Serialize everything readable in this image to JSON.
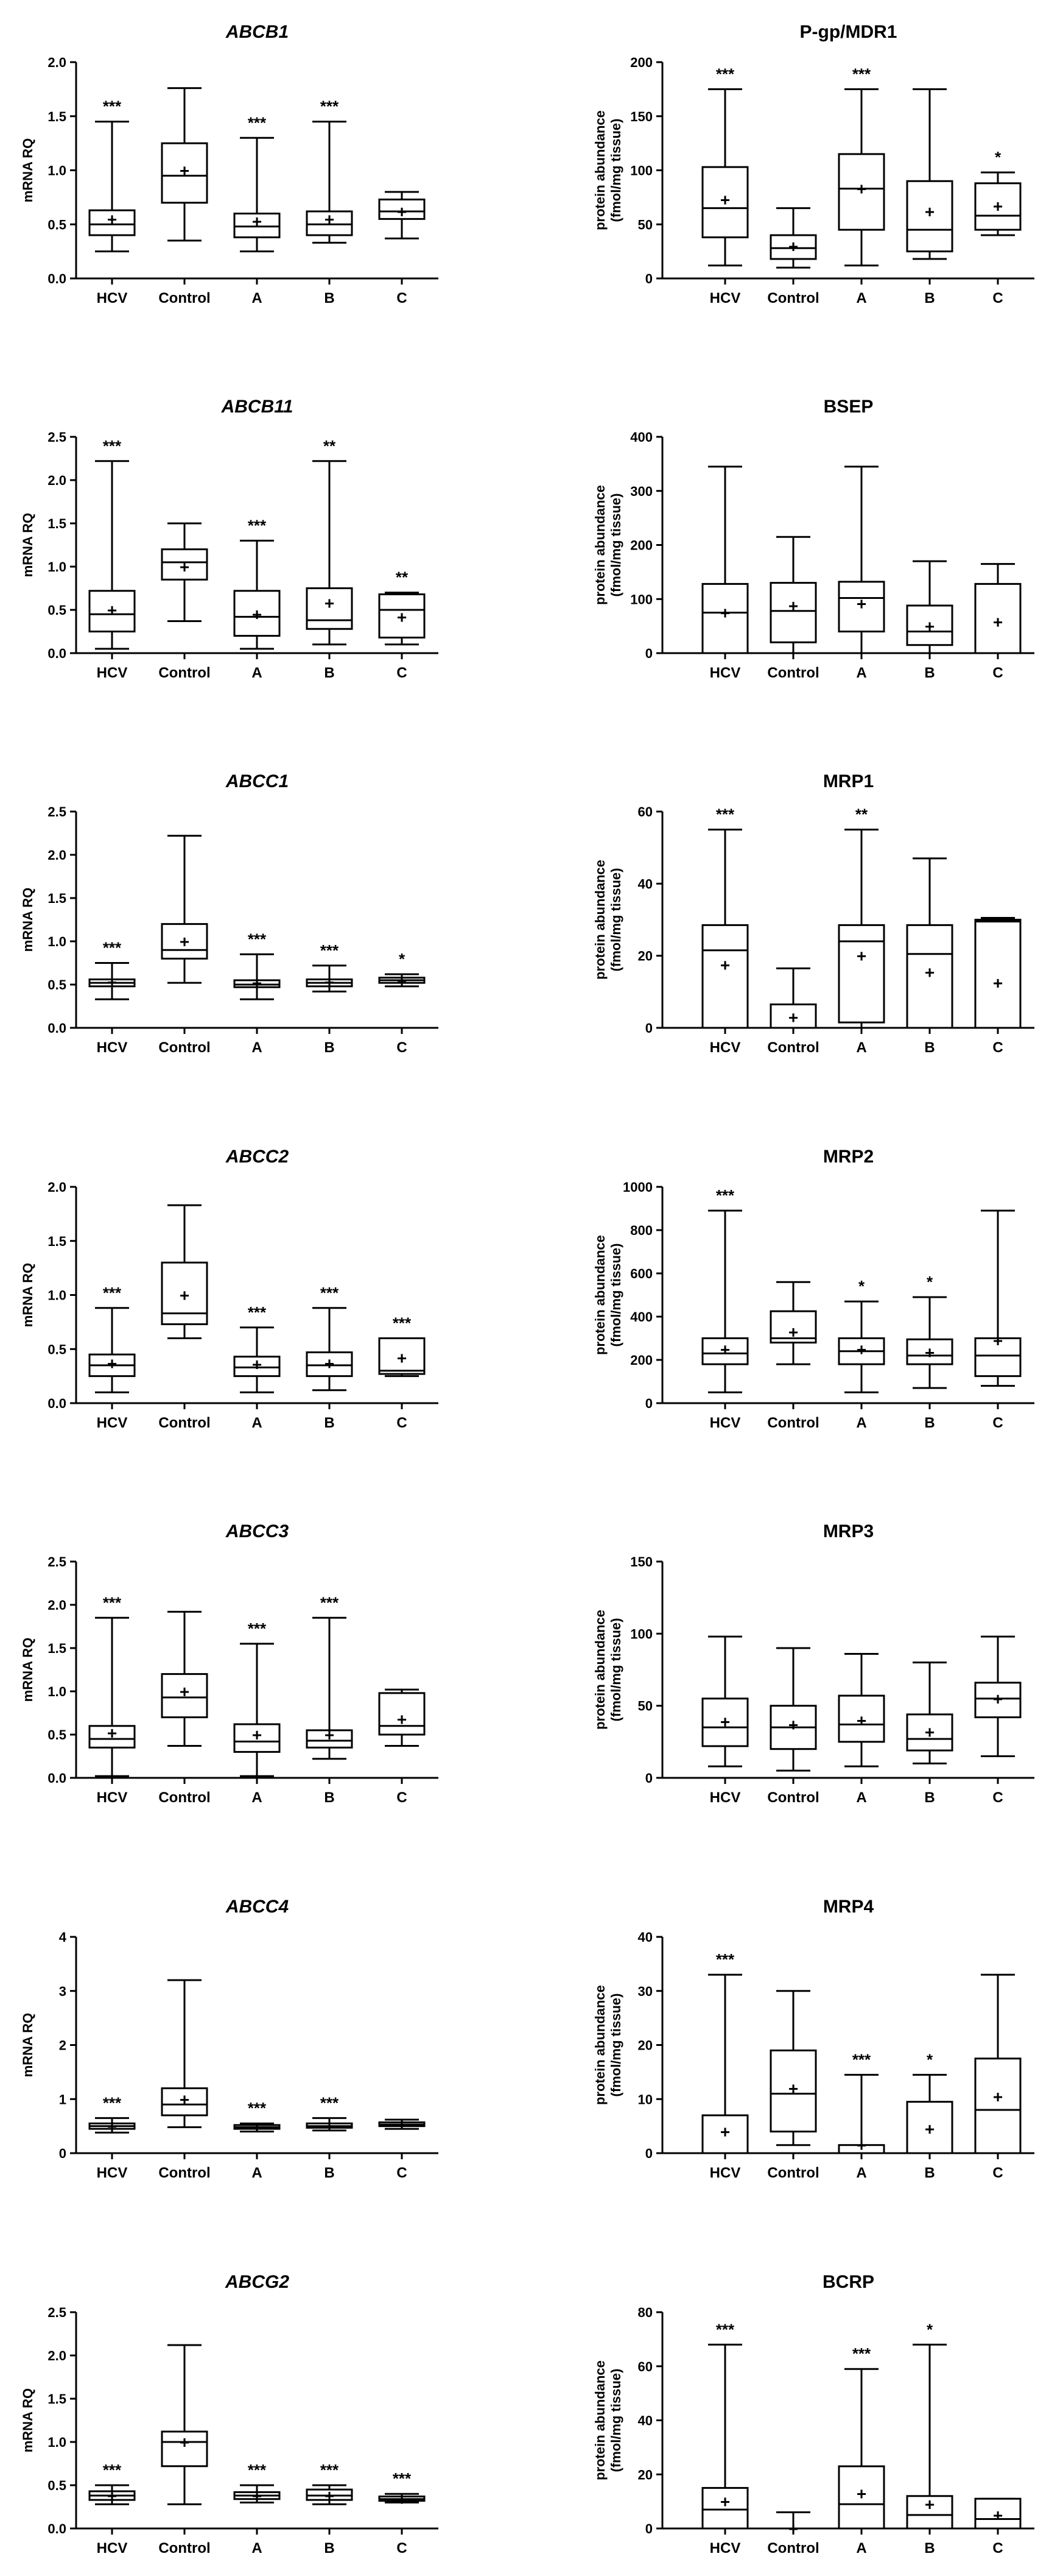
{
  "chart_data": [
    {
      "type": "boxplot",
      "title": "ABCB1",
      "title_italic": true,
      "ylabel": "mRNA RQ",
      "ylabel2": "",
      "ylim": [
        0,
        2.0
      ],
      "yticks": [
        0.0,
        0.5,
        1.0,
        1.5,
        2.0
      ],
      "ytick_labels": [
        "0.0",
        "0.5",
        "1.0",
        "1.5",
        "2.0"
      ],
      "categories": [
        "HCV",
        "Control",
        "A",
        "B",
        "C"
      ],
      "boxes": [
        {
          "min": 0.25,
          "q1": 0.4,
          "median": 0.5,
          "q3": 0.63,
          "max": 1.45,
          "mean": 0.55
        },
        {
          "min": 0.35,
          "q1": 0.7,
          "median": 0.95,
          "q3": 1.25,
          "max": 1.76,
          "mean": 1.0
        },
        {
          "min": 0.25,
          "q1": 0.38,
          "median": 0.48,
          "q3": 0.6,
          "max": 1.3,
          "mean": 0.53
        },
        {
          "min": 0.33,
          "q1": 0.4,
          "median": 0.5,
          "q3": 0.62,
          "max": 1.45,
          "mean": 0.55
        },
        {
          "min": 0.37,
          "q1": 0.55,
          "median": 0.62,
          "q3": 0.73,
          "max": 0.8,
          "mean": 0.62
        }
      ],
      "significance": [
        "***",
        "",
        "***",
        "***",
        ""
      ]
    },
    {
      "type": "boxplot",
      "title": "P-gp/MDR1",
      "title_italic": false,
      "ylabel": "protein abundance",
      "ylabel2": "(fmol/mg tissue)",
      "ylim": [
        0,
        200
      ],
      "yticks": [
        0,
        50,
        100,
        150,
        200
      ],
      "ytick_labels": [
        "0",
        "50",
        "100",
        "150",
        "200"
      ],
      "categories": [
        "HCV",
        "Control",
        "A",
        "B",
        "C"
      ],
      "boxes": [
        {
          "min": 12,
          "q1": 38,
          "median": 65,
          "q3": 103,
          "max": 175,
          "mean": 73
        },
        {
          "min": 10,
          "q1": 18,
          "median": 28,
          "q3": 40,
          "max": 65,
          "mean": 30
        },
        {
          "min": 12,
          "q1": 45,
          "median": 83,
          "q3": 115,
          "max": 175,
          "mean": 83
        },
        {
          "min": 18,
          "q1": 25,
          "median": 45,
          "q3": 90,
          "max": 175,
          "mean": 62
        },
        {
          "min": 40,
          "q1": 45,
          "median": 58,
          "q3": 88,
          "max": 98,
          "mean": 67
        }
      ],
      "significance": [
        "***",
        "",
        "***",
        "",
        "*"
      ]
    },
    {
      "type": "boxplot",
      "title": "ABCB11",
      "title_italic": true,
      "ylabel": "mRNA RQ",
      "ylabel2": "",
      "ylim": [
        0,
        2.5
      ],
      "yticks": [
        0.0,
        0.5,
        1.0,
        1.5,
        2.0,
        2.5
      ],
      "ytick_labels": [
        "0.0",
        "0.5",
        "1.0",
        "1.5",
        "2.0",
        "2.5"
      ],
      "categories": [
        "HCV",
        "Control",
        "A",
        "B",
        "C"
      ],
      "boxes": [
        {
          "min": 0.05,
          "q1": 0.25,
          "median": 0.45,
          "q3": 0.72,
          "max": 2.22,
          "mean": 0.5
        },
        {
          "min": 0.37,
          "q1": 0.85,
          "median": 1.05,
          "q3": 1.2,
          "max": 1.5,
          "mean": 1.0
        },
        {
          "min": 0.05,
          "q1": 0.2,
          "median": 0.42,
          "q3": 0.72,
          "max": 1.3,
          "mean": 0.45
        },
        {
          "min": 0.1,
          "q1": 0.28,
          "median": 0.38,
          "q3": 0.75,
          "max": 2.22,
          "mean": 0.58
        },
        {
          "min": 0.1,
          "q1": 0.18,
          "median": 0.5,
          "q3": 0.68,
          "max": 0.7,
          "mean": 0.42
        }
      ],
      "significance": [
        "***",
        "",
        "***",
        "**",
        "**"
      ]
    },
    {
      "type": "boxplot",
      "title": "BSEP",
      "title_italic": false,
      "ylabel": "protein abundance",
      "ylabel2": "(fmol/mg tissue)",
      "ylim": [
        0,
        400
      ],
      "yticks": [
        0,
        100,
        200,
        300,
        400
      ],
      "ytick_labels": [
        "0",
        "100",
        "200",
        "300",
        "400"
      ],
      "categories": [
        "HCV",
        "Control",
        "A",
        "B",
        "C"
      ],
      "boxes": [
        {
          "min": 0,
          "q1": 0,
          "median": 75,
          "q3": 128,
          "max": 345,
          "mean": 75
        },
        {
          "min": 0,
          "q1": 20,
          "median": 78,
          "q3": 130,
          "max": 215,
          "mean": 88
        },
        {
          "min": 0,
          "q1": 40,
          "median": 102,
          "q3": 132,
          "max": 345,
          "mean": 92
        },
        {
          "min": 0,
          "q1": 15,
          "median": 40,
          "q3": 88,
          "max": 170,
          "mean": 50
        },
        {
          "min": 0,
          "q1": 0,
          "median": 0,
          "q3": 128,
          "max": 165,
          "mean": 58
        }
      ],
      "significance": [
        "",
        "",
        "",
        "",
        ""
      ]
    },
    {
      "type": "boxplot",
      "title": "ABCC1",
      "title_italic": true,
      "ylabel": "mRNA RQ",
      "ylabel2": "",
      "ylim": [
        0,
        2.5
      ],
      "yticks": [
        0.0,
        0.5,
        1.0,
        1.5,
        2.0,
        2.5
      ],
      "ytick_labels": [
        "0.0",
        "0.5",
        "1.0",
        "1.5",
        "2.0",
        "2.5"
      ],
      "categories": [
        "HCV",
        "Control",
        "A",
        "B",
        "C"
      ],
      "boxes": [
        {
          "min": 0.33,
          "q1": 0.48,
          "median": 0.52,
          "q3": 0.56,
          "max": 0.75,
          "mean": 0.53
        },
        {
          "min": 0.52,
          "q1": 0.8,
          "median": 0.9,
          "q3": 1.2,
          "max": 2.22,
          "mean": 1.0
        },
        {
          "min": 0.33,
          "q1": 0.47,
          "median": 0.5,
          "q3": 0.55,
          "max": 0.85,
          "mean": 0.52
        },
        {
          "min": 0.42,
          "q1": 0.48,
          "median": 0.52,
          "q3": 0.56,
          "max": 0.72,
          "mean": 0.53
        },
        {
          "min": 0.48,
          "q1": 0.52,
          "median": 0.55,
          "q3": 0.58,
          "max": 0.62,
          "mean": 0.55
        }
      ],
      "significance": [
        "***",
        "",
        "***",
        "***",
        "*"
      ]
    },
    {
      "type": "boxplot",
      "title": "MRP1",
      "title_italic": false,
      "ylabel": "protein abundance",
      "ylabel2": "(fmol/mg tissue)",
      "ylim": [
        0,
        60
      ],
      "yticks": [
        0,
        20,
        40,
        60
      ],
      "ytick_labels": [
        "0",
        "20",
        "40",
        "60"
      ],
      "categories": [
        "HCV",
        "Control",
        "A",
        "B",
        "C"
      ],
      "boxes": [
        {
          "min": 0,
          "q1": 0,
          "median": 21.5,
          "q3": 28.5,
          "max": 55,
          "mean": 17.5
        },
        {
          "min": 0,
          "q1": 0,
          "median": 0,
          "q3": 6.5,
          "max": 16.5,
          "mean": 3
        },
        {
          "min": 0,
          "q1": 1.5,
          "median": 24,
          "q3": 28.5,
          "max": 55,
          "mean": 20
        },
        {
          "min": 0,
          "q1": 0,
          "median": 20.5,
          "q3": 28.5,
          "max": 47,
          "mean": 15.5
        },
        {
          "min": 0,
          "q1": 0,
          "median": 29.5,
          "q3": 30,
          "max": 30.5,
          "mean": 12.5
        }
      ],
      "significance": [
        "***",
        "",
        "**",
        "",
        ""
      ]
    },
    {
      "type": "boxplot",
      "title": "ABCC2",
      "title_italic": true,
      "ylabel": "mRNA RQ",
      "ylabel2": "",
      "ylim": [
        0,
        2.0
      ],
      "yticks": [
        0.0,
        0.5,
        1.0,
        1.5,
        2.0
      ],
      "ytick_labels": [
        "0.0",
        "0.5",
        "1.0",
        "1.5",
        "2.0"
      ],
      "categories": [
        "HCV",
        "Control",
        "A",
        "B",
        "C"
      ],
      "boxes": [
        {
          "min": 0.1,
          "q1": 0.25,
          "median": 0.35,
          "q3": 0.45,
          "max": 0.88,
          "mean": 0.37
        },
        {
          "min": 0.6,
          "q1": 0.73,
          "median": 0.83,
          "q3": 1.3,
          "max": 1.83,
          "mean": 1.0
        },
        {
          "min": 0.1,
          "q1": 0.25,
          "median": 0.33,
          "q3": 0.43,
          "max": 0.7,
          "mean": 0.36
        },
        {
          "min": 0.12,
          "q1": 0.25,
          "median": 0.35,
          "q3": 0.47,
          "max": 0.88,
          "mean": 0.37
        },
        {
          "min": 0.25,
          "q1": 0.27,
          "median": 0.3,
          "q3": 0.6,
          "max": 0.6,
          "mean": 0.42
        }
      ],
      "significance": [
        "***",
        "",
        "***",
        "***",
        "***"
      ]
    },
    {
      "type": "boxplot",
      "title": "MRP2",
      "title_italic": false,
      "ylabel": "protein abundance",
      "ylabel2": "(fmol/mg tissue)",
      "ylim": [
        0,
        1000
      ],
      "yticks": [
        0,
        200,
        400,
        600,
        800,
        1000
      ],
      "ytick_labels": [
        "0",
        "200",
        "400",
        "600",
        "800",
        "1000"
      ],
      "categories": [
        "HCV",
        "Control",
        "A",
        "B",
        "C"
      ],
      "boxes": [
        {
          "min": 50,
          "q1": 180,
          "median": 230,
          "q3": 300,
          "max": 890,
          "mean": 250
        },
        {
          "min": 180,
          "q1": 280,
          "median": 300,
          "q3": 425,
          "max": 560,
          "mean": 330
        },
        {
          "min": 50,
          "q1": 180,
          "median": 240,
          "q3": 300,
          "max": 470,
          "mean": 250
        },
        {
          "min": 70,
          "q1": 180,
          "median": 220,
          "q3": 295,
          "max": 490,
          "mean": 235
        },
        {
          "min": 80,
          "q1": 125,
          "median": 220,
          "q3": 300,
          "max": 890,
          "mean": 290
        }
      ],
      "significance": [
        "***",
        "",
        "*",
        "*",
        ""
      ]
    },
    {
      "type": "boxplot",
      "title": "ABCC3",
      "title_italic": true,
      "ylabel": "mRNA RQ",
      "ylabel2": "",
      "ylim": [
        0,
        2.5
      ],
      "yticks": [
        0.0,
        0.5,
        1.0,
        1.5,
        2.0,
        2.5
      ],
      "ytick_labels": [
        "0.0",
        "0.5",
        "1.0",
        "1.5",
        "2.0",
        "2.5"
      ],
      "categories": [
        "HCV",
        "Control",
        "A",
        "B",
        "C"
      ],
      "boxes": [
        {
          "min": 0.02,
          "q1": 0.35,
          "median": 0.45,
          "q3": 0.6,
          "max": 1.85,
          "mean": 0.52
        },
        {
          "min": 0.37,
          "q1": 0.7,
          "median": 0.93,
          "q3": 1.2,
          "max": 1.92,
          "mean": 1.0
        },
        {
          "min": 0.02,
          "q1": 0.3,
          "median": 0.42,
          "q3": 0.62,
          "max": 1.55,
          "mean": 0.5
        },
        {
          "min": 0.22,
          "q1": 0.35,
          "median": 0.43,
          "q3": 0.55,
          "max": 1.85,
          "mean": 0.5
        },
        {
          "min": 0.37,
          "q1": 0.5,
          "median": 0.6,
          "q3": 0.98,
          "max": 1.02,
          "mean": 0.68
        }
      ],
      "significance": [
        "***",
        "",
        "***",
        "***",
        ""
      ]
    },
    {
      "type": "boxplot",
      "title": "MRP3",
      "title_italic": false,
      "ylabel": "protein abundance",
      "ylabel2": "(fmol/mg tissue)",
      "ylim": [
        0,
        150
      ],
      "yticks": [
        0,
        50,
        100,
        150
      ],
      "ytick_labels": [
        "0",
        "50",
        "100",
        "150"
      ],
      "categories": [
        "HCV",
        "Control",
        "A",
        "B",
        "C"
      ],
      "boxes": [
        {
          "min": 8,
          "q1": 22,
          "median": 35,
          "q3": 55,
          "max": 98,
          "mean": 39
        },
        {
          "min": 5,
          "q1": 20,
          "median": 35,
          "q3": 50,
          "max": 90,
          "mean": 37
        },
        {
          "min": 8,
          "q1": 25,
          "median": 37,
          "q3": 57,
          "max": 86,
          "mean": 40
        },
        {
          "min": 10,
          "q1": 19,
          "median": 27,
          "q3": 44,
          "max": 80,
          "mean": 32
        },
        {
          "min": 15,
          "q1": 42,
          "median": 55,
          "q3": 66,
          "max": 98,
          "mean": 55
        }
      ],
      "significance": [
        "",
        "",
        "",
        "",
        ""
      ]
    },
    {
      "type": "boxplot",
      "title": "ABCC4",
      "title_italic": true,
      "ylabel": "mRNA RQ",
      "ylabel2": "",
      "ylim": [
        0,
        4
      ],
      "yticks": [
        0,
        1,
        2,
        3,
        4
      ],
      "ytick_labels": [
        "0",
        "1",
        "2",
        "3",
        "4"
      ],
      "categories": [
        "HCV",
        "Control",
        "A",
        "B",
        "C"
      ],
      "boxes": [
        {
          "min": 0.38,
          "q1": 0.45,
          "median": 0.5,
          "q3": 0.55,
          "max": 0.65,
          "mean": 0.5
        },
        {
          "min": 0.48,
          "q1": 0.7,
          "median": 0.9,
          "q3": 1.2,
          "max": 3.2,
          "mean": 1.0
        },
        {
          "min": 0.4,
          "q1": 0.45,
          "median": 0.48,
          "q3": 0.52,
          "max": 0.55,
          "mean": 0.48
        },
        {
          "min": 0.42,
          "q1": 0.47,
          "median": 0.5,
          "q3": 0.55,
          "max": 0.65,
          "mean": 0.5
        },
        {
          "min": 0.45,
          "q1": 0.5,
          "median": 0.53,
          "q3": 0.57,
          "max": 0.62,
          "mean": 0.53
        }
      ],
      "significance": [
        "***",
        "",
        "***",
        "***",
        ""
      ]
    },
    {
      "type": "boxplot",
      "title": "MRP4",
      "title_italic": false,
      "ylabel": "protein abundance",
      "ylabel2": "(fmol/mg tissue)",
      "ylim": [
        0,
        40
      ],
      "yticks": [
        0,
        10,
        20,
        30,
        40
      ],
      "ytick_labels": [
        "0",
        "10",
        "20",
        "30",
        "40"
      ],
      "categories": [
        "HCV",
        "Control",
        "A",
        "B",
        "C"
      ],
      "boxes": [
        {
          "min": 0,
          "q1": 0,
          "median": 0,
          "q3": 7,
          "max": 33,
          "mean": 4
        },
        {
          "min": 1.5,
          "q1": 4,
          "median": 11,
          "q3": 19,
          "max": 30,
          "mean": 12
        },
        {
          "min": 0,
          "q1": 0,
          "median": 0,
          "q3": 1.5,
          "max": 14.5,
          "mean": 1.5
        },
        {
          "min": 0,
          "q1": 0,
          "median": 0,
          "q3": 9.5,
          "max": 14.5,
          "mean": 4.5
        },
        {
          "min": 0,
          "q1": 0,
          "median": 8,
          "q3": 17.5,
          "max": 33,
          "mean": 10.5
        }
      ],
      "significance": [
        "***",
        "",
        "***",
        "*",
        ""
      ]
    },
    {
      "type": "boxplot",
      "title": "ABCG2",
      "title_italic": true,
      "ylabel": "mRNA RQ",
      "ylabel2": "",
      "ylim": [
        0,
        2.5
      ],
      "yticks": [
        0.0,
        0.5,
        1.0,
        1.5,
        2.0,
        2.5
      ],
      "ytick_labels": [
        "0.0",
        "0.5",
        "1.0",
        "1.5",
        "2.0",
        "2.5"
      ],
      "categories": [
        "HCV",
        "Control",
        "A",
        "B",
        "C"
      ],
      "boxes": [
        {
          "min": 0.28,
          "q1": 0.33,
          "median": 0.38,
          "q3": 0.43,
          "max": 0.5,
          "mean": 0.38
        },
        {
          "min": 0.28,
          "q1": 0.72,
          "median": 1.0,
          "q3": 1.12,
          "max": 2.12,
          "mean": 1.0
        },
        {
          "min": 0.3,
          "q1": 0.34,
          "median": 0.38,
          "q3": 0.42,
          "max": 0.5,
          "mean": 0.38
        },
        {
          "min": 0.28,
          "q1": 0.33,
          "median": 0.38,
          "q3": 0.45,
          "max": 0.5,
          "mean": 0.38
        },
        {
          "min": 0.3,
          "q1": 0.32,
          "median": 0.34,
          "q3": 0.37,
          "max": 0.4,
          "mean": 0.34
        }
      ],
      "significance": [
        "***",
        "",
        "***",
        "***",
        "***"
      ]
    },
    {
      "type": "boxplot",
      "title": "BCRP",
      "title_italic": false,
      "ylabel": "protein abundance",
      "ylabel2": "(fmol/mg tissue)",
      "ylim": [
        0,
        80
      ],
      "yticks": [
        0,
        20,
        40,
        60,
        80
      ],
      "ytick_labels": [
        "0",
        "20",
        "40",
        "60",
        "80"
      ],
      "categories": [
        "HCV",
        "Control",
        "A",
        "B",
        "C"
      ],
      "boxes": [
        {
          "min": 0,
          "q1": 0,
          "median": 7,
          "q3": 15,
          "max": 68,
          "mean": 10
        },
        {
          "min": 0,
          "q1": 0,
          "median": 0,
          "q3": 0,
          "max": 6,
          "mean": 0
        },
        {
          "min": 0,
          "q1": 0,
          "median": 9,
          "q3": 23,
          "max": 59,
          "mean": 13
        },
        {
          "min": 0,
          "q1": 0,
          "median": 5,
          "q3": 12,
          "max": 68,
          "mean": 9
        },
        {
          "min": 0,
          "q1": 0,
          "median": 3.5,
          "q3": 11,
          "max": 11,
          "mean": 5
        }
      ],
      "significance": [
        "***",
        "",
        "***",
        "*",
        ""
      ]
    }
  ]
}
